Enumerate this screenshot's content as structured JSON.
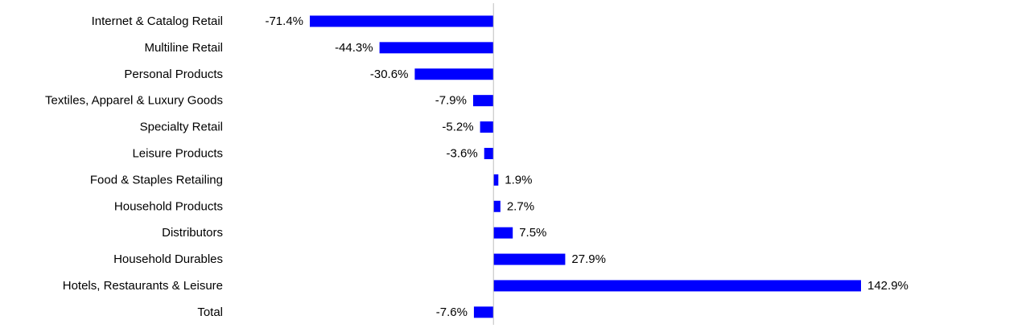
{
  "chart_data": {
    "type": "bar",
    "orientation": "horizontal",
    "title": "",
    "xlabel": "",
    "ylabel": "",
    "categories": [
      "Internet & Catalog Retail",
      "Multiline Retail",
      "Personal Products",
      "Textiles, Apparel & Luxury Goods",
      "Specialty Retail",
      "Leisure Products",
      "Food & Staples Retailing",
      "Household Products",
      "Distributors",
      "Household Durables",
      "Hotels, Restaurants & Leisure",
      "Total"
    ],
    "values": [
      -71.4,
      -44.3,
      -30.6,
      -7.9,
      -5.2,
      -3.6,
      1.9,
      2.7,
      7.5,
      27.9,
      142.9,
      -7.6
    ],
    "value_labels": [
      "-71.4%",
      "-44.3%",
      "-30.6%",
      "-7.9%",
      "-5.2%",
      "-3.6%",
      "1.9%",
      "2.7%",
      "7.5%",
      "27.9%",
      "142.9%",
      "-7.6%"
    ],
    "xlim": [
      -71.4,
      142.9
    ],
    "bar_color": "#0000ff",
    "axis_color": "#bfbfbf",
    "grid": false,
    "legend": "none"
  }
}
